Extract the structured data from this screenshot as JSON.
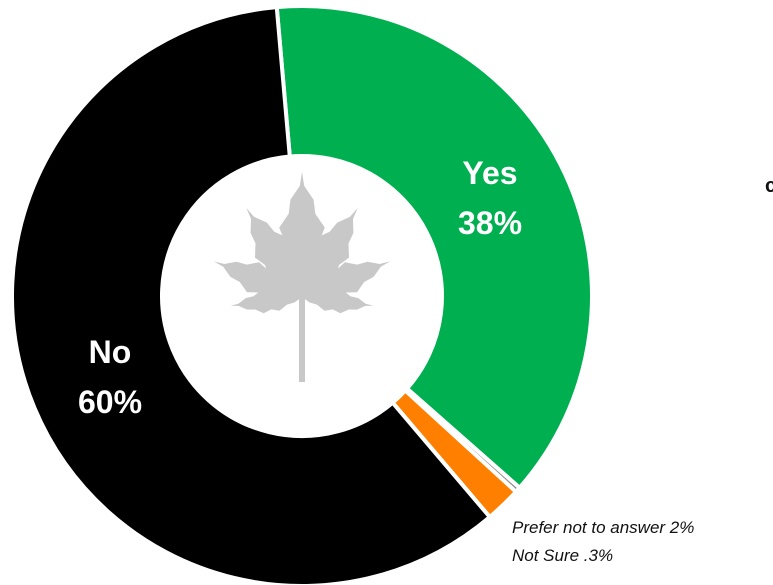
{
  "chart_data": {
    "type": "pie",
    "variant": "donut",
    "slices": [
      {
        "label": "Yes",
        "value": 38,
        "value_label": "38%",
        "color": "#00B050",
        "label_color": "#ffffff"
      },
      {
        "label": "Not Sure",
        "value": 0.3,
        "value_label": ".3%",
        "color": "#8c8c8c"
      },
      {
        "label": "Prefer not to answer",
        "value": 2,
        "value_label": "2%",
        "color": "#FF8000"
      },
      {
        "label": "No",
        "value": 60,
        "value_label": "60%",
        "color": "#000000",
        "label_color": "#ffffff"
      }
    ],
    "annotations": [
      "Prefer not to answer 2%",
      "Not Sure .3%"
    ],
    "right_edge_text": "c",
    "center_icon": "cannabis-leaf-icon",
    "center_icon_color": "#c8c8c8"
  }
}
